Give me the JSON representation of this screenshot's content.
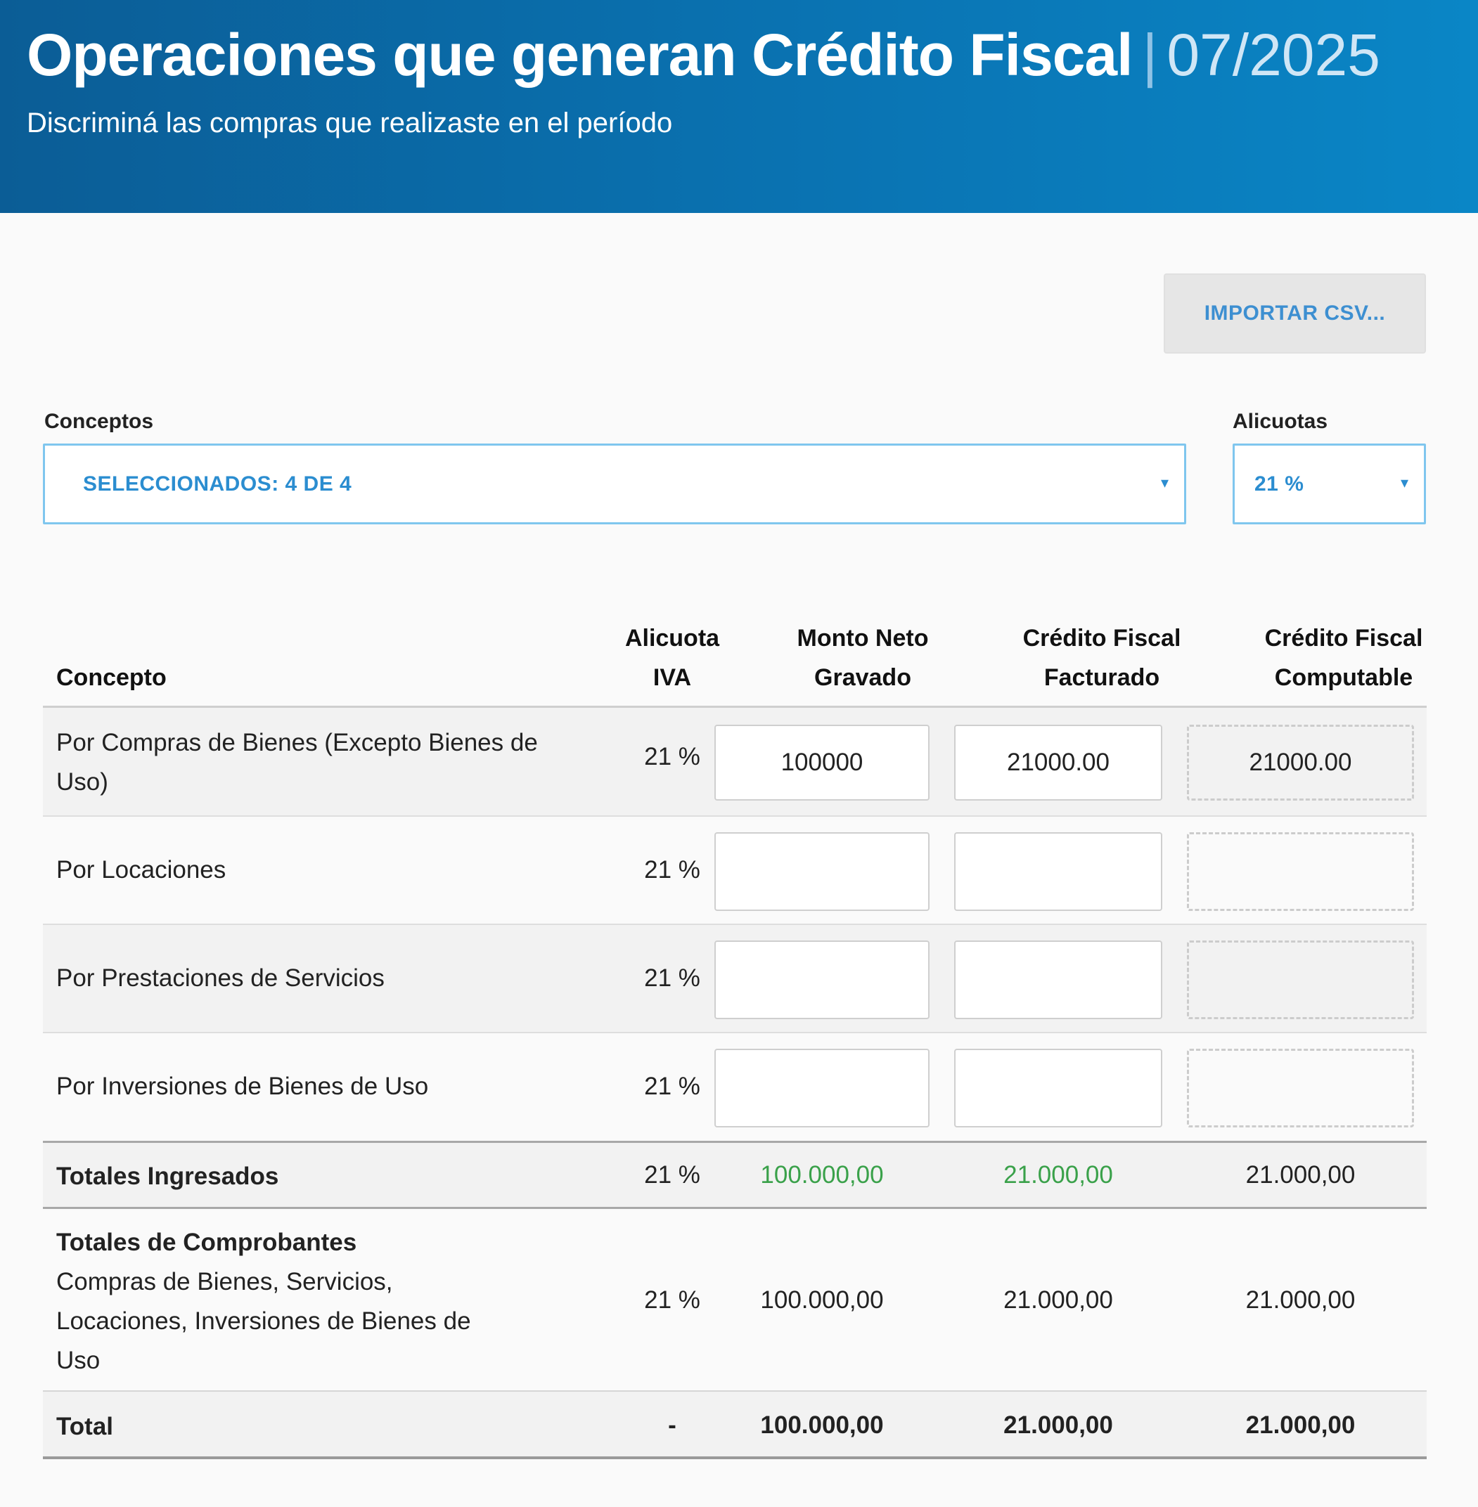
{
  "header": {
    "title": "Operaciones que generan Crédito Fiscal",
    "separator": "|",
    "period": "07/2025",
    "subtitle": "Discriminá las compras que realizaste en el período",
    "colors": {
      "gradient_start": "#0b5d96",
      "gradient_end": "#0a86c6"
    }
  },
  "actions": {
    "import_label": "IMPORTAR CSV..."
  },
  "filters": {
    "conceptos": {
      "label": "Conceptos",
      "value": "SELECCIONADOS: 4 DE 4"
    },
    "alicuotas": {
      "label": "Alicuotas",
      "value": "21 %"
    },
    "caret_icon": "chevron-down-icon"
  },
  "table": {
    "headers": {
      "concepto": "Concepto",
      "alicuota_line1": "Alicuota",
      "alicuota_line2": "IVA",
      "neto_line1": "Monto Neto",
      "neto_line2": "Gravado",
      "facturado_line1": "Crédito Fiscal",
      "facturado_line2": "Facturado",
      "computable_line1": "Crédito Fiscal",
      "computable_line2": "Computable"
    },
    "rows": [
      {
        "concepto": "Por Compras de Bienes (Excepto Bienes de Uso)",
        "alicuota": "21 %",
        "neto": "100000",
        "facturado": "21000.00",
        "computable": "21000.00"
      },
      {
        "concepto": "Por Locaciones",
        "alicuota": "21 %",
        "neto": "",
        "facturado": "",
        "computable": ""
      },
      {
        "concepto": "Por Prestaciones de Servicios",
        "alicuota": "21 %",
        "neto": "",
        "facturado": "",
        "computable": ""
      },
      {
        "concepto": "Por Inversiones de Bienes de Uso",
        "alicuota": "21 %",
        "neto": "",
        "facturado": "",
        "computable": ""
      }
    ],
    "totales_ingresados": {
      "label": "Totales Ingresados",
      "alicuota": "21 %",
      "neto": "100.000,00",
      "facturado": "21.000,00",
      "computable": "21.000,00",
      "highlight_color": "#3aa14a"
    },
    "totales_comprobantes": {
      "label": "Totales de Comprobantes",
      "detail": "Compras de Bienes, Servicios, Locaciones, Inversiones de Bienes de Uso",
      "alicuota": "21 %",
      "neto": "100.000,00",
      "facturado": "21.000,00",
      "computable": "21.000,00"
    },
    "total": {
      "label": "Total",
      "alicuota": "-",
      "neto": "100.000,00",
      "facturado": "21.000,00",
      "computable": "21.000,00"
    }
  }
}
